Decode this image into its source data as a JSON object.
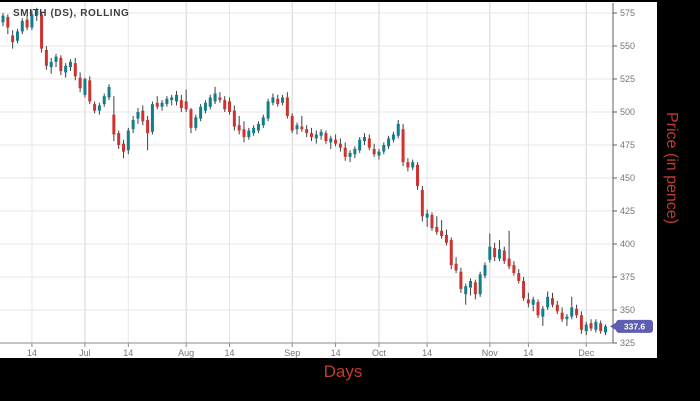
{
  "title": "SMITH (DS), ROLLING",
  "x_axis": {
    "title": "Days"
  },
  "y_axis": {
    "title": "Price (in pence)"
  },
  "last_price_tag": "337.6",
  "colors": {
    "up": "#0f7f8b",
    "down": "#cf3330",
    "wick": "#404040",
    "grid_minor": "#e7e7e7",
    "grid_month": "#d4d4d4",
    "axis_bottom": "#8a8a8a",
    "axis_right": "#5f5f5f",
    "tick_text": "#757575",
    "title_text": "#3e3e3e",
    "accent_red": "#c43a2d",
    "tag_fill": "#5d5db2",
    "tag_text": "#ffffff",
    "panel_bg": "#ffffff",
    "outer_bg": "#000000"
  },
  "chart_data": {
    "type": "candlestick",
    "series_name": "SMITH (DS), ROLLING",
    "xlabel": "Days",
    "ylabel": "Price (in pence)",
    "ylim": [
      325,
      580
    ],
    "y_ticks": [
      575,
      550,
      525,
      500,
      475,
      450,
      425,
      400,
      375,
      350,
      325
    ],
    "x_ticks": [
      {
        "label": "14",
        "i": 6,
        "month_start": false
      },
      {
        "label": "Jul",
        "i": 17,
        "month_start": true
      },
      {
        "label": "14",
        "i": 26,
        "month_start": false
      },
      {
        "label": "Aug",
        "i": 38,
        "month_start": true
      },
      {
        "label": "14",
        "i": 47,
        "month_start": false
      },
      {
        "label": "Sep",
        "i": 60,
        "month_start": true
      },
      {
        "label": "14",
        "i": 69,
        "month_start": false
      },
      {
        "label": "Oct",
        "i": 78,
        "month_start": true
      },
      {
        "label": "14",
        "i": 88,
        "month_start": false
      },
      {
        "label": "Nov",
        "i": 101,
        "month_start": true
      },
      {
        "label": "14",
        "i": 109,
        "month_start": false
      },
      {
        "label": "Dec",
        "i": 121,
        "month_start": true
      }
    ],
    "last_close": 337.6,
    "grid": true,
    "candles_ohlc": [
      [
        568,
        575,
        565,
        573
      ],
      [
        572,
        574,
        559,
        564
      ],
      [
        558,
        562,
        548,
        553
      ],
      [
        554,
        563,
        552,
        561
      ],
      [
        561,
        571,
        559,
        569
      ],
      [
        570,
        573,
        562,
        564
      ],
      [
        564,
        577,
        562,
        574
      ],
      [
        573,
        579,
        569,
        577
      ],
      [
        574,
        576,
        545,
        548
      ],
      [
        547,
        550,
        532,
        535
      ],
      [
        534,
        541,
        529,
        538
      ],
      [
        538,
        544,
        534,
        542
      ],
      [
        541,
        543,
        528,
        531
      ],
      [
        530,
        537,
        526,
        535
      ],
      [
        534,
        540,
        531,
        538
      ],
      [
        537,
        541,
        524,
        527
      ],
      [
        526,
        530,
        515,
        518
      ],
      [
        513,
        526,
        511,
        525
      ],
      [
        524,
        527,
        506,
        508
      ],
      [
        506,
        508,
        499,
        501
      ],
      [
        501,
        507,
        498,
        505
      ],
      [
        506,
        514,
        504,
        512
      ],
      [
        511,
        521,
        509,
        519
      ],
      [
        498,
        512,
        478,
        483
      ],
      [
        484,
        486,
        472,
        475
      ],
      [
        476,
        479,
        465,
        470
      ],
      [
        471,
        488,
        468,
        486
      ],
      [
        487,
        497,
        484,
        494
      ],
      [
        495,
        503,
        491,
        500
      ],
      [
        501,
        505,
        490,
        493
      ],
      [
        494,
        497,
        471,
        484
      ],
      [
        485,
        508,
        483,
        506
      ],
      [
        507,
        512,
        502,
        504
      ],
      [
        504,
        509,
        501,
        507
      ],
      [
        506,
        512,
        504,
        510
      ],
      [
        509,
        513,
        505,
        511
      ],
      [
        508,
        516,
        505,
        513
      ],
      [
        509,
        513,
        500,
        503
      ],
      [
        508,
        517,
        500,
        502
      ],
      [
        502,
        503,
        484,
        488
      ],
      [
        488,
        498,
        486,
        496
      ],
      [
        495,
        506,
        493,
        504
      ],
      [
        501,
        509,
        499,
        507
      ],
      [
        504,
        513,
        502,
        511
      ],
      [
        508,
        519,
        506,
        514
      ],
      [
        511,
        515,
        507,
        509
      ],
      [
        509,
        512,
        500,
        502
      ],
      [
        508,
        511,
        498,
        500
      ],
      [
        501,
        505,
        486,
        489
      ],
      [
        490,
        497,
        483,
        486
      ],
      [
        487,
        493,
        477,
        481
      ],
      [
        481,
        488,
        479,
        486
      ],
      [
        484,
        490,
        482,
        488
      ],
      [
        486,
        493,
        484,
        491
      ],
      [
        490,
        498,
        488,
        496
      ],
      [
        495,
        510,
        493,
        508
      ],
      [
        507,
        514,
        505,
        511
      ],
      [
        510,
        513,
        504,
        506
      ],
      [
        507,
        513,
        505,
        511
      ],
      [
        511,
        515,
        495,
        497
      ],
      [
        497,
        499,
        484,
        486
      ],
      [
        487,
        492,
        483,
        490
      ],
      [
        489,
        497,
        485,
        487
      ],
      [
        487,
        490,
        481,
        484
      ],
      [
        484,
        488,
        478,
        481
      ],
      [
        480,
        486,
        476,
        483
      ],
      [
        482,
        487,
        479,
        485
      ],
      [
        484,
        486,
        476,
        478
      ],
      [
        477,
        482,
        472,
        480
      ],
      [
        479,
        483,
        474,
        476
      ],
      [
        476,
        480,
        470,
        473
      ],
      [
        473,
        477,
        463,
        466
      ],
      [
        466,
        471,
        462,
        469
      ],
      [
        468,
        474,
        465,
        472
      ],
      [
        471,
        481,
        469,
        479
      ],
      [
        478,
        484,
        475,
        481
      ],
      [
        480,
        483,
        471,
        473
      ],
      [
        472,
        476,
        466,
        468
      ],
      [
        467,
        472,
        464,
        470
      ],
      [
        470,
        477,
        468,
        475
      ],
      [
        474,
        482,
        472,
        480
      ],
      [
        479,
        485,
        477,
        483
      ],
      [
        482,
        494,
        480,
        491
      ],
      [
        487,
        491,
        459,
        462
      ],
      [
        462,
        465,
        455,
        458
      ],
      [
        458,
        464,
        456,
        462
      ],
      [
        460,
        462,
        441,
        444
      ],
      [
        441,
        444,
        417,
        421
      ],
      [
        420,
        426,
        413,
        423
      ],
      [
        422,
        424,
        410,
        412
      ],
      [
        413,
        421,
        407,
        409
      ],
      [
        410,
        418,
        404,
        406
      ],
      [
        407,
        411,
        399,
        401
      ],
      [
        403,
        405,
        381,
        384
      ],
      [
        385,
        390,
        378,
        380
      ],
      [
        379,
        382,
        363,
        366
      ],
      [
        362,
        370,
        354,
        368
      ],
      [
        367,
        374,
        361,
        372
      ],
      [
        371,
        373,
        358,
        362
      ],
      [
        362,
        379,
        360,
        377
      ],
      [
        376,
        386,
        374,
        384
      ],
      [
        388,
        408,
        386,
        398
      ],
      [
        397,
        401,
        387,
        390
      ],
      [
        389,
        403,
        387,
        396
      ],
      [
        395,
        398,
        385,
        387
      ],
      [
        389,
        410,
        381,
        383
      ],
      [
        384,
        387,
        376,
        378
      ],
      [
        378,
        381,
        370,
        372
      ],
      [
        372,
        375,
        357,
        359
      ],
      [
        358,
        363,
        352,
        355
      ],
      [
        354,
        360,
        349,
        358
      ],
      [
        356,
        358,
        344,
        346
      ],
      [
        345,
        353,
        338,
        351
      ],
      [
        352,
        364,
        350,
        360
      ],
      [
        359,
        363,
        352,
        354
      ],
      [
        354,
        357,
        347,
        349
      ],
      [
        348,
        352,
        341,
        343
      ],
      [
        343,
        347,
        338,
        345
      ],
      [
        345,
        360,
        343,
        352
      ],
      [
        351,
        354,
        344,
        346
      ],
      [
        346,
        349,
        332,
        335
      ],
      [
        334,
        341,
        331,
        339
      ],
      [
        340,
        343,
        334,
        336
      ],
      [
        335,
        343,
        333,
        341
      ],
      [
        340,
        342,
        332,
        334
      ],
      [
        333,
        339,
        331,
        337.6
      ]
    ]
  }
}
